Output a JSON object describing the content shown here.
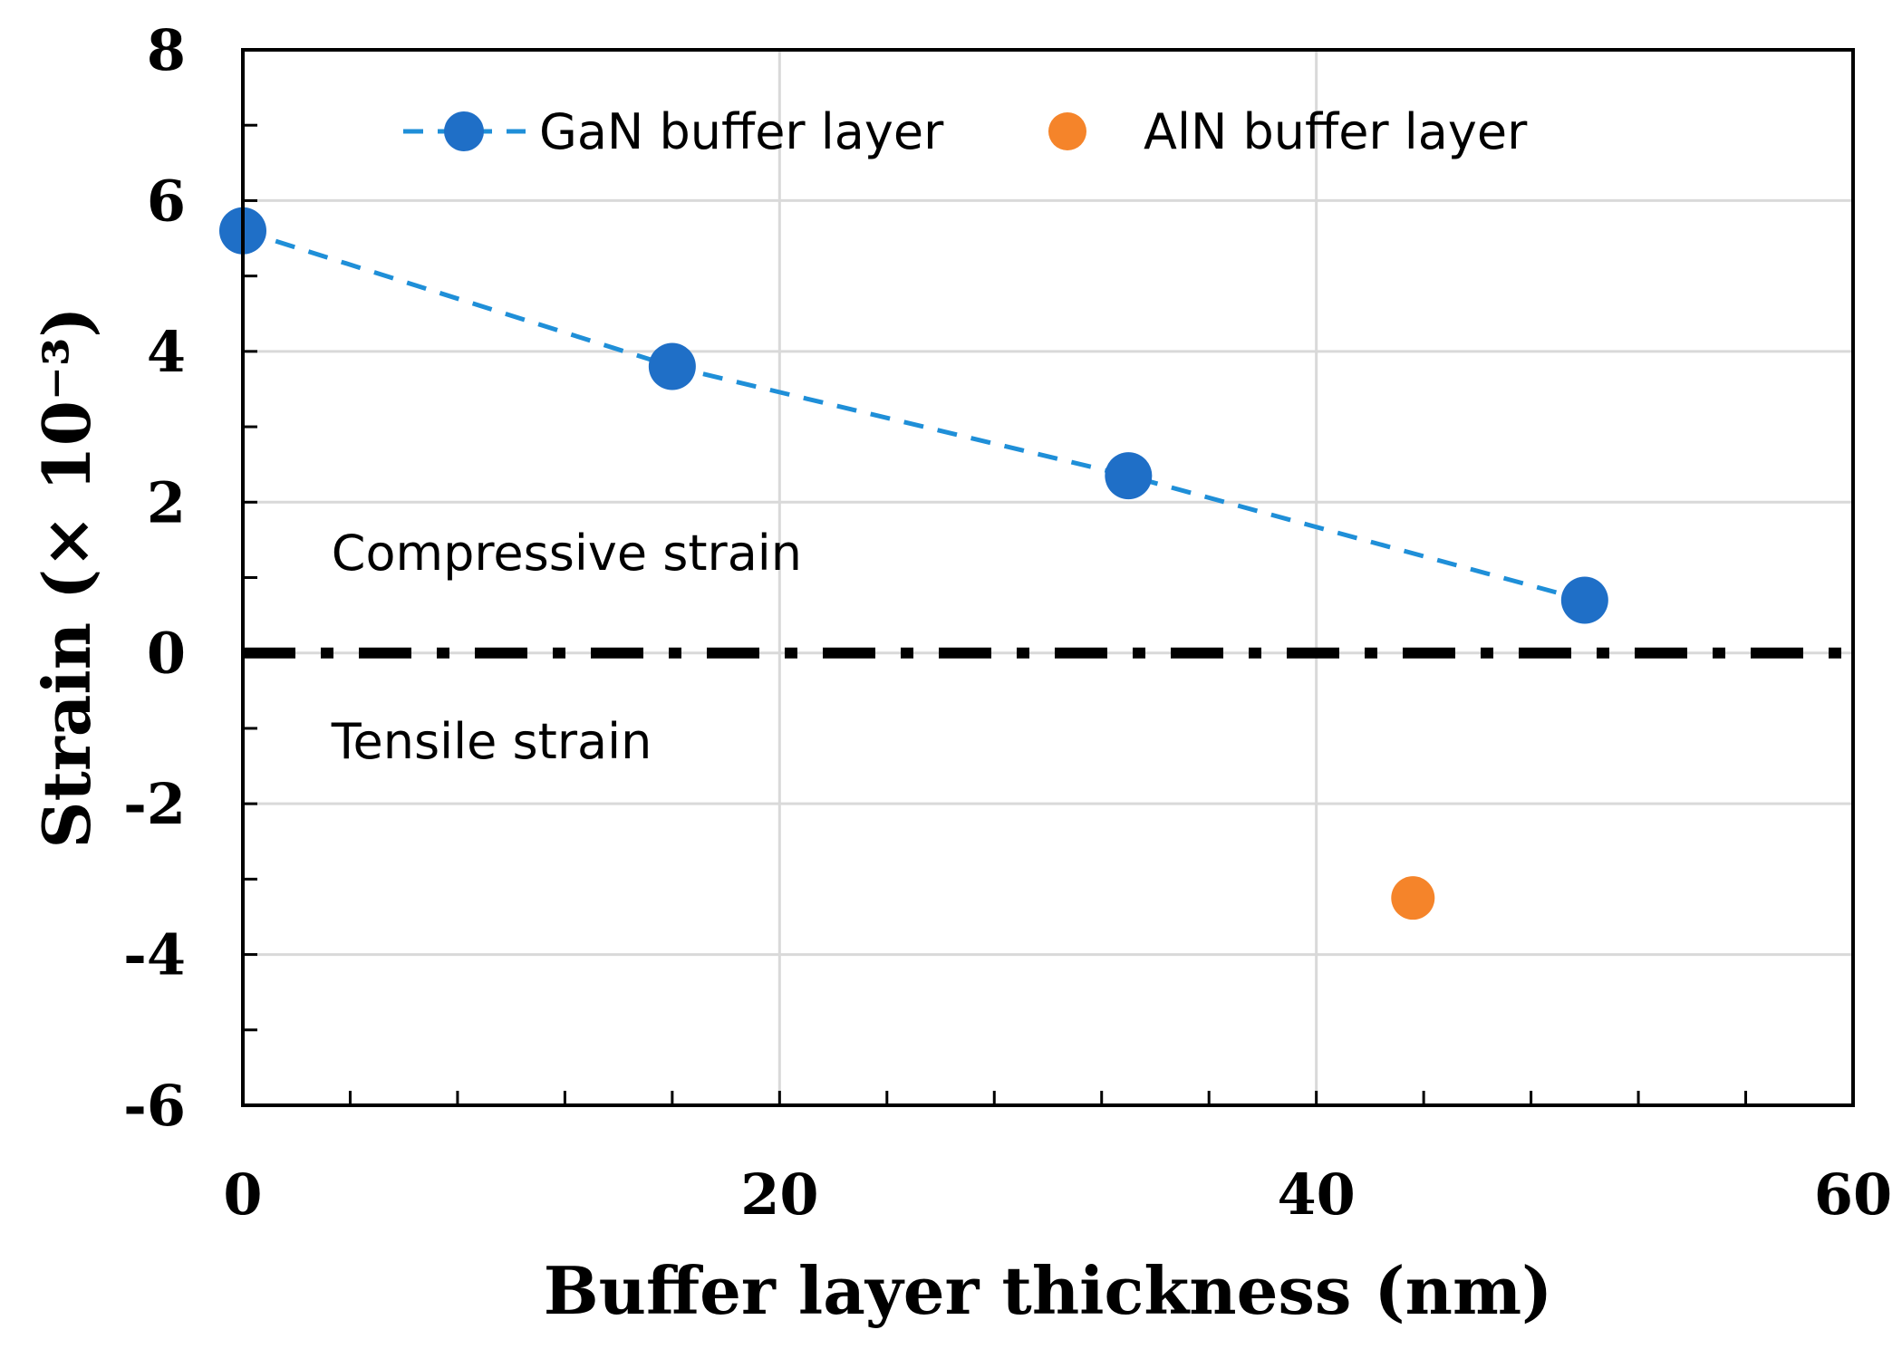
{
  "chart_data": {
    "type": "scatter",
    "title": "",
    "xlabel": "Buffer layer  thickness (nm)",
    "ylabel": "Strain (× 10⁻³)",
    "xlim": [
      0,
      60
    ],
    "ylim": [
      -6,
      8
    ],
    "x_ticks": [
      0,
      20,
      40,
      60
    ],
    "y_ticks": [
      8,
      6,
      4,
      2,
      0,
      -2,
      -4,
      -6
    ],
    "grid": true,
    "legend_position": "top",
    "series": [
      {
        "name": "GaN buffer layer",
        "color": "#1f6fc7",
        "line_color": "#1f8fd8",
        "line_style": "dashed",
        "marker": "circle",
        "x": [
          0,
          16,
          33,
          50
        ],
        "y": [
          5.6,
          3.8,
          2.35,
          0.7
        ]
      },
      {
        "name": "AlN buffer layer",
        "color": "#f5842a",
        "line_style": "none",
        "marker": "circle",
        "x": [
          43.6
        ],
        "y": [
          -3.25
        ]
      }
    ],
    "reference_line": {
      "y": 0,
      "style": "dash-dot",
      "color": "#000000"
    },
    "annotations": [
      {
        "text": "Compressive strain",
        "x": 3.3,
        "y": 1.1
      },
      {
        "text": "Tensile strain",
        "x": 3.3,
        "y": -1.4
      }
    ]
  }
}
